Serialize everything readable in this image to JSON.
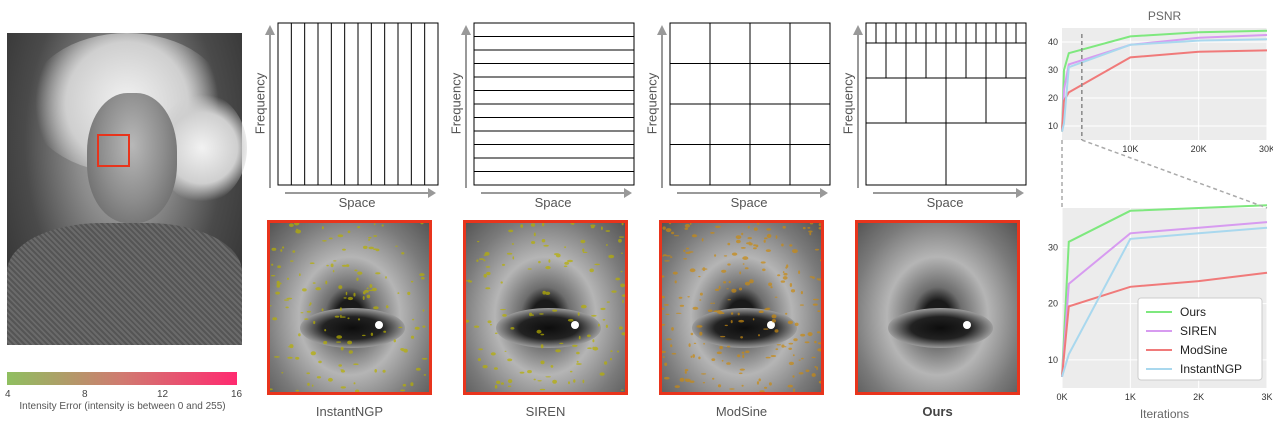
{
  "colorbar": {
    "ticks": [
      "4",
      "8",
      "12",
      "16"
    ],
    "caption": "Intensity Error (intensity is between 0 and 255)"
  },
  "panels": [
    {
      "method": "InstantNGP",
      "xlabel": "Space",
      "ylabel": "Frequency",
      "noise_density": 0.55,
      "noise_color": "#b7b000"
    },
    {
      "method": "SIREN",
      "xlabel": "Space",
      "ylabel": "Frequency",
      "noise_density": 0.5,
      "noise_color": "#b7b000"
    },
    {
      "method": "ModSine",
      "xlabel": "Space",
      "ylabel": "Frequency",
      "noise_density": 0.85,
      "noise_color": "#c98a10"
    },
    {
      "method": "Ours",
      "xlabel": "Space",
      "ylabel": "Frequency",
      "noise_density": 0.0,
      "noise_color": "#b7b000"
    }
  ],
  "colors": {
    "accent": "#e8341c",
    "ours": "#7ee87e",
    "siren": "#d79bf0",
    "modsine": "#f07a7a",
    "instantngp": "#a9d8ee"
  },
  "chart_data": [
    {
      "type": "line",
      "title": "PSNR",
      "xlabel": "",
      "ylabel": "",
      "xticks": [
        "10K",
        "20K",
        "30K"
      ],
      "yticks": [
        "10",
        "20",
        "30",
        "40"
      ],
      "xlim": [
        0,
        30000
      ],
      "ylim": [
        5,
        45
      ],
      "grid": true,
      "series": [
        {
          "name": "Ours",
          "color": "#7ee87e",
          "x": [
            0,
            300,
            1000,
            10000,
            20000,
            30000
          ],
          "y": [
            8,
            30,
            36,
            42,
            43.5,
            44
          ]
        },
        {
          "name": "SIREN",
          "color": "#d79bf0",
          "x": [
            0,
            300,
            1000,
            10000,
            20000,
            30000
          ],
          "y": [
            8,
            23,
            32,
            39,
            41.5,
            42.5
          ]
        },
        {
          "name": "ModSine",
          "color": "#f07a7a",
          "x": [
            0,
            300,
            1000,
            10000,
            20000,
            30000
          ],
          "y": [
            8,
            19,
            22,
            34.5,
            36.5,
            37
          ]
        },
        {
          "name": "InstantNGP",
          "color": "#a9d8ee",
          "x": [
            0,
            300,
            1000,
            10000,
            20000,
            30000
          ],
          "y": [
            8,
            11,
            31,
            39,
            40.5,
            41
          ]
        }
      ]
    },
    {
      "type": "line",
      "title": "",
      "xlabel": "Iterations",
      "ylabel": "",
      "xticks": [
        "0K",
        "1K",
        "2K",
        "3K"
      ],
      "yticks": [
        "10",
        "20",
        "30"
      ],
      "xlim": [
        0,
        3000
      ],
      "ylim": [
        5,
        37
      ],
      "grid": true,
      "legend": "bottom-right",
      "series": [
        {
          "name": "Ours",
          "color": "#7ee87e",
          "x": [
            0,
            100,
            1000,
            2000,
            3000
          ],
          "y": [
            7,
            31,
            36.5,
            37,
            37.5
          ]
        },
        {
          "name": "SIREN",
          "color": "#d79bf0",
          "x": [
            0,
            100,
            1000,
            2000,
            3000
          ],
          "y": [
            7,
            23.5,
            32.5,
            33.5,
            34.5
          ]
        },
        {
          "name": "ModSine",
          "color": "#f07a7a",
          "x": [
            0,
            100,
            1000,
            2000,
            3000
          ],
          "y": [
            7,
            19.5,
            23,
            24,
            25.5
          ]
        },
        {
          "name": "InstantNGP",
          "color": "#a9d8ee",
          "x": [
            0,
            100,
            1000,
            2000,
            3000
          ],
          "y": [
            7,
            11,
            31.5,
            32.5,
            33.5
          ]
        }
      ]
    }
  ]
}
